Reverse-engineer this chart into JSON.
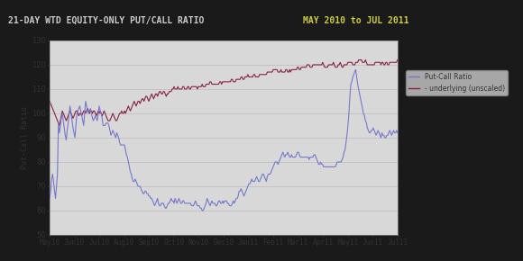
{
  "title_left": "21-DAY WTD EQUITY-ONLY PUT/CALL RATIO",
  "title_right": "MAY 2010 to JUL 2011",
  "ylabel": "Put-Call Ratio",
  "ylim": [
    50,
    130
  ],
  "yticks": [
    50,
    60,
    70,
    80,
    90,
    100,
    110,
    120,
    130
  ],
  "header_bg": "#1a1a1a",
  "title_left_color": "#cccccc",
  "title_right_color": "#cccc44",
  "plot_bg": "#d8d8d8",
  "fig_bg": "#d8d8d8",
  "outer_bg": "#1a1a1a",
  "grid_color": "#bbbbbb",
  "line_pcr_color": "#7777cc",
  "line_und_color": "#882244",
  "legend_label_pcr": "Put-Call Ratio",
  "legend_label_und": "- underlying (unscaled)",
  "xtick_labels": [
    "May10",
    "Jun10",
    "Jul10",
    "Aug10",
    "Sep10",
    "Oct10",
    "Nov10",
    "Dec10",
    "Jan11",
    "Feb11",
    "Mar11",
    "Apr11",
    "May11",
    "Jun11",
    "Jul11"
  ],
  "pcr_data": [
    65,
    68,
    73,
    75,
    72,
    68,
    65,
    70,
    75,
    96,
    92,
    95,
    98,
    100,
    97,
    94,
    91,
    89,
    93,
    96,
    100,
    103,
    100,
    97,
    94,
    92,
    90,
    95,
    100,
    101,
    102,
    103,
    101,
    99,
    97,
    95,
    100,
    105,
    103,
    101,
    100,
    101,
    102,
    100,
    98,
    97,
    98,
    99,
    98,
    97,
    100,
    103,
    101,
    100,
    98,
    95,
    95,
    95,
    96,
    96,
    96,
    95,
    93,
    91,
    92,
    93,
    92,
    91,
    90,
    92,
    91,
    90,
    88,
    87,
    87,
    87,
    87,
    87,
    85,
    83,
    82,
    80,
    78,
    76,
    75,
    73,
    72,
    72,
    73,
    72,
    71,
    70,
    70,
    70,
    69,
    68,
    67,
    67,
    68,
    68,
    67,
    67,
    66,
    66,
    65,
    65,
    64,
    63,
    62,
    63,
    64,
    65,
    63,
    62,
    62,
    63,
    63,
    63,
    62,
    61,
    61,
    62,
    63,
    63,
    64,
    65,
    64,
    64,
    63,
    65,
    64,
    63,
    64,
    65,
    64,
    63,
    63,
    64,
    64,
    63,
    63,
    63,
    63,
    63,
    63,
    63,
    62,
    62,
    62,
    63,
    64,
    63,
    62,
    62,
    62,
    61,
    61,
    60,
    60,
    61,
    62,
    63,
    65,
    64,
    63,
    62,
    63,
    64,
    63,
    63,
    63,
    62,
    62,
    63,
    64,
    64,
    63,
    63,
    64,
    63,
    64,
    64,
    64,
    63,
    63,
    62,
    62,
    62,
    63,
    64,
    63,
    64,
    65,
    65,
    66,
    68,
    68,
    69,
    68,
    67,
    66,
    67,
    68,
    69,
    70,
    71,
    71,
    72,
    73,
    72,
    72,
    72,
    73,
    74,
    73,
    72,
    72,
    73,
    74,
    75,
    75,
    74,
    73,
    72,
    74,
    75,
    75,
    75,
    76,
    77,
    78,
    79,
    80,
    80,
    80,
    79,
    80,
    81,
    82,
    83,
    84,
    83,
    82,
    83,
    83,
    84,
    83,
    82,
    82,
    83,
    82,
    82,
    82,
    82,
    83,
    84,
    84,
    83,
    82,
    82,
    82,
    82,
    82,
    82,
    82,
    82,
    82,
    81,
    82,
    82,
    82,
    82,
    83,
    83,
    82,
    81,
    80,
    79,
    79,
    80,
    79,
    79,
    78,
    78,
    78,
    78,
    78,
    78,
    78,
    78,
    78,
    78,
    78,
    78,
    78,
    79,
    80,
    80,
    80,
    80,
    80,
    81,
    82,
    84,
    85,
    88,
    91,
    95,
    100,
    107,
    112,
    113,
    115,
    116,
    117,
    118,
    115,
    112,
    110,
    108,
    106,
    104,
    102,
    100,
    99,
    97,
    96,
    94,
    93,
    92,
    92,
    93,
    93,
    94,
    93,
    92,
    91,
    92,
    93,
    92,
    91,
    90,
    92,
    91,
    91,
    90,
    90,
    91,
    91,
    92,
    93,
    92,
    91,
    92,
    93,
    92,
    92,
    93,
    92
  ],
  "und_data": [
    105,
    104,
    103,
    102,
    101,
    100,
    99,
    98,
    97,
    96,
    95,
    97,
    99,
    101,
    100,
    99,
    98,
    97,
    98,
    99,
    100,
    101,
    100,
    99,
    98,
    99,
    100,
    101,
    101,
    100,
    99,
    100,
    100,
    99,
    100,
    101,
    101,
    100,
    101,
    102,
    101,
    100,
    101,
    101,
    100,
    101,
    101,
    100,
    99,
    100,
    101,
    100,
    101,
    100,
    99,
    100,
    101,
    100,
    99,
    98,
    97,
    97,
    97,
    98,
    99,
    100,
    99,
    98,
    97,
    97,
    98,
    99,
    100,
    100,
    101,
    100,
    100,
    101,
    100,
    101,
    102,
    103,
    102,
    101,
    102,
    103,
    104,
    105,
    104,
    103,
    104,
    105,
    105,
    104,
    105,
    106,
    106,
    105,
    106,
    107,
    107,
    106,
    105,
    106,
    107,
    108,
    107,
    106,
    107,
    108,
    108,
    107,
    108,
    109,
    109,
    108,
    108,
    109,
    109,
    108,
    107,
    108,
    108,
    109,
    109,
    109,
    110,
    110,
    111,
    110,
    110,
    110,
    111,
    110,
    110,
    110,
    110,
    111,
    111,
    110,
    110,
    110,
    111,
    111,
    110,
    110,
    111,
    111,
    111,
    111,
    111,
    111,
    110,
    111,
    111,
    111,
    111,
    112,
    111,
    111,
    111,
    112,
    112,
    112,
    112,
    113,
    113,
    112,
    112,
    112,
    112,
    112,
    112,
    112,
    112,
    113,
    113,
    112,
    113,
    113,
    113,
    113,
    113,
    113,
    113,
    113,
    113,
    114,
    114,
    113,
    113,
    113,
    114,
    114,
    114,
    114,
    114,
    115,
    115,
    114,
    114,
    115,
    115,
    115,
    116,
    115,
    115,
    115,
    115,
    115,
    116,
    116,
    115,
    115,
    115,
    115,
    116,
    116,
    116,
    116,
    116,
    116,
    116,
    116,
    117,
    117,
    117,
    117,
    117,
    117,
    118,
    118,
    118,
    118,
    118,
    117,
    117,
    117,
    118,
    117,
    117,
    117,
    117,
    118,
    118,
    117,
    117,
    118,
    117,
    118,
    118,
    118,
    118,
    118,
    118,
    119,
    119,
    118,
    118,
    119,
    119,
    119,
    119,
    119,
    119,
    120,
    120,
    120,
    119,
    119,
    119,
    120,
    120,
    120,
    120,
    120,
    120,
    120,
    120,
    120,
    120,
    121,
    120,
    119,
    119,
    119,
    119,
    120,
    120,
    120,
    120,
    120,
    121,
    120,
    119,
    119,
    119,
    120,
    120,
    121,
    120,
    119,
    119,
    120,
    120,
    120,
    120,
    121,
    121,
    121,
    121,
    121,
    120,
    120,
    120,
    121,
    121,
    121,
    122,
    122,
    122,
    122,
    121,
    121,
    121,
    122,
    121,
    120,
    120,
    120,
    120,
    120,
    120,
    120,
    120,
    121,
    121,
    121,
    121,
    121,
    121,
    120,
    121,
    121,
    120,
    120,
    121,
    121,
    120,
    120,
    121,
    121,
    121,
    121,
    121,
    121,
    121,
    121,
    122
  ]
}
